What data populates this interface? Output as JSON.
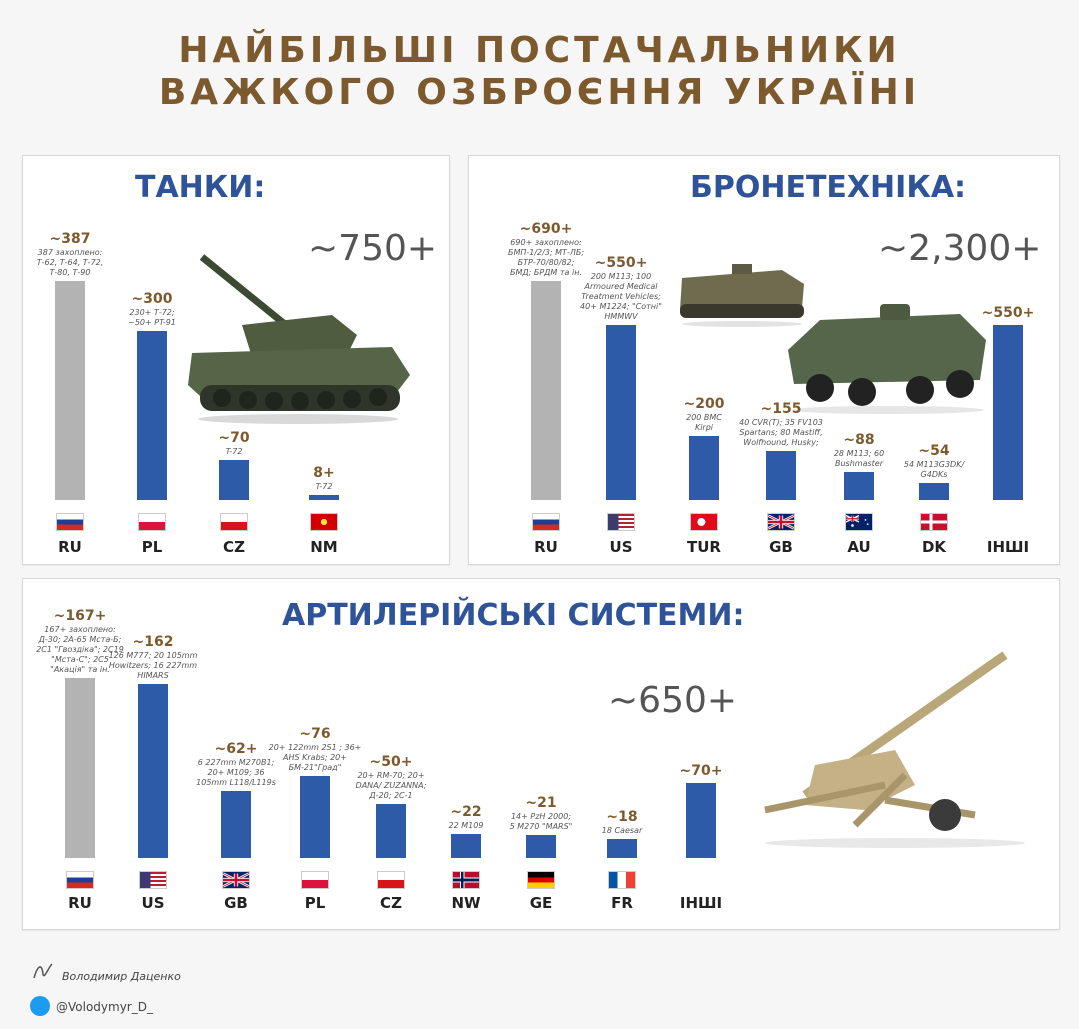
{
  "header": {
    "line1": "НАЙБІЛЬШІ ПОСТАЧАЛЬНИКИ",
    "line2": "ВАЖКОГО ОЗБРОЄННЯ УКРАЇНІ"
  },
  "colors": {
    "ru_bar": "#b3b3b3",
    "bar": "#2e5ba8",
    "title": "#7d5a2e",
    "panel_title": "#2e5399"
  },
  "chart_data": [
    {
      "type": "bar",
      "title": "ТАНКИ:",
      "total": "~750+",
      "categories": [
        "RU",
        "PL",
        "CZ",
        "NM"
      ],
      "values": [
        387,
        300,
        70,
        8
      ],
      "labels": [
        "~387",
        "~300",
        "~70",
        "8+"
      ],
      "notes": [
        [
          "387 захоплено:",
          "Т-62, Т-64, Т-72,",
          "Т-80, Т-90"
        ],
        [
          "230+ Т-72;",
          "~50+ PT-91"
        ],
        [
          "T-72"
        ],
        [
          "T-72"
        ]
      ],
      "flags": [
        "flag-russia",
        "flag-poland",
        "flag-czechia",
        "flag-north-macedonia"
      ]
    },
    {
      "type": "bar",
      "title": "БРОНЕТЕХНІКА:",
      "total": "~2,300+",
      "categories": [
        "RU",
        "US",
        "TUR",
        "GB",
        "AU",
        "DK",
        "ІНШІ"
      ],
      "values": [
        690,
        550,
        200,
        155,
        88,
        54,
        550
      ],
      "labels": [
        "~690+",
        "~550+",
        "~200",
        "~155",
        "~88",
        "~54",
        "~550+"
      ],
      "notes": [
        [
          "690+ захоплено:",
          "БМП-1/2/3; МТ-ЛБ;",
          "БТР-70/80/82;",
          "БМД; БРДМ та ін."
        ],
        [
          "200 M113; 100",
          "Armoured Medical",
          "Treatment Vehicles;",
          "40+ M1224; \"Сотні\"",
          "HMMWV"
        ],
        [
          "200 BMC",
          "Kirpi"
        ],
        [
          "40 CVR(T); 35 FV103",
          "Spartans; 80 Mastiff,",
          "Wolfhound, Husky;"
        ],
        [
          "28 M113; 60",
          "Bushmaster"
        ],
        [
          "54 M113G3DK/",
          "G4DKs"
        ],
        []
      ],
      "flags": [
        "flag-russia",
        "flag-usa",
        "flag-turkey",
        "flag-uk",
        "flag-australia",
        "flag-denmark",
        ""
      ]
    },
    {
      "type": "bar",
      "title": "АРТИЛЕРІЙСЬКІ СИСТЕМИ:",
      "total": "~650+",
      "categories": [
        "RU",
        "US",
        "GB",
        "PL",
        "CZ",
        "NW",
        "GE",
        "FR",
        "ІНШІ"
      ],
      "values": [
        167,
        162,
        62,
        76,
        50,
        22,
        21,
        18,
        70
      ],
      "labels": [
        "~167+",
        "~162",
        "~62+",
        "~76",
        "~50+",
        "~22",
        "~21",
        "~18",
        "~70+"
      ],
      "notes": [
        [
          "167+ захоплено:",
          "Д-30; 2А-65 Мста-Б;",
          "2С1 \"Гвоздіка\"; 2С19",
          "\"Мста-С\"; 2С5",
          "\"Акація\" та ін."
        ],
        [
          "126 M777; 20 105mm",
          "Howitzers; 16 227mm",
          "HIMARS"
        ],
        [
          "6 227mm M270B1;",
          "20+ M109; 36",
          "105mm L118/L119s"
        ],
        [
          "20+ 122mm 2S1 ; 36+",
          "AHS Krabs; 20+",
          "БМ-21\"Град\""
        ],
        [
          "20+ RM-70; 20+",
          "DANA/ ZUZANNA;",
          "Д-20; 2С-1"
        ],
        [
          "22 M109"
        ],
        [
          "14+ PzH 2000;",
          "5 M270 \"MARS\""
        ],
        [
          "18 Caesar"
        ],
        []
      ],
      "flags": [
        "flag-russia",
        "flag-usa",
        "flag-uk",
        "flag-poland",
        "flag-czechia",
        "flag-norway",
        "flag-germany",
        "flag-france",
        ""
      ]
    }
  ],
  "footer": {
    "author": "Володимир Даценко",
    "twitter": "@Volodymyr_D_"
  }
}
